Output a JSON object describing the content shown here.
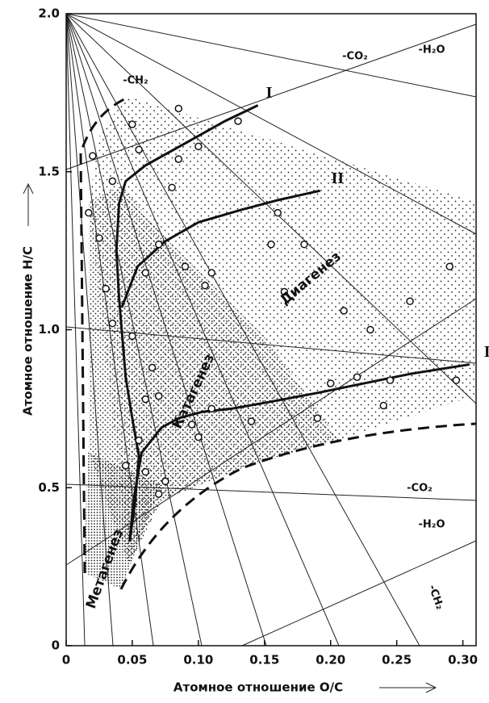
{
  "chart_data": {
    "type": "line",
    "x_label": "Атомное отношение O/C",
    "y_label": "Атомное отношение H/C",
    "xlim": [
      0,
      0.31
    ],
    "ylim": [
      0,
      2.0
    ],
    "xticks": [
      0,
      0.05,
      {
        "value": 0.1,
        "label": "0.10"
      },
      0.15,
      {
        "value": 0.2,
        "label": "0.20"
      },
      0.25,
      {
        "value": 0.3,
        "label": "0.30"
      }
    ],
    "yticks": [
      0,
      0.5,
      {
        "value": 1.0,
        "label": "1.0"
      },
      1.5,
      {
        "value": 2.0,
        "label": "2.0"
      }
    ],
    "series": [
      {
        "name": "I",
        "color": "#111111",
        "x": [
          0.145,
          0.12,
          0.09,
          0.06,
          0.045,
          0.04,
          0.038,
          0.04,
          0.042,
          0.045,
          0.05,
          0.055,
          0.052,
          0.048
        ],
        "values": [
          1.71,
          1.66,
          1.59,
          1.52,
          1.47,
          1.4,
          1.25,
          1.1,
          1.0,
          0.85,
          0.72,
          0.6,
          0.45,
          0.33
        ]
      },
      {
        "name": "II",
        "color": "#111111",
        "x": [
          0.192,
          0.16,
          0.133,
          0.1,
          0.075,
          0.054,
          0.042
        ],
        "values": [
          1.44,
          1.41,
          1.38,
          1.34,
          1.28,
          1.2,
          1.07
        ]
      },
      {
        "name": "III",
        "color": "#111111",
        "x": [
          0.305,
          0.26,
          0.225,
          0.19,
          0.152,
          0.125,
          0.103,
          0.085,
          0.072,
          0.057,
          0.051,
          0.048
        ],
        "values": [
          0.89,
          0.86,
          0.83,
          0.8,
          0.77,
          0.75,
          0.74,
          0.72,
          0.69,
          0.61,
          0.46,
          0.33
        ]
      }
    ],
    "points": {
      "x": [
        0.085,
        0.13,
        0.05,
        0.1,
        0.055,
        0.085,
        0.02,
        0.035,
        0.08,
        0.017,
        0.025,
        0.07,
        0.16,
        0.18,
        0.155,
        0.09,
        0.11,
        0.06,
        0.105,
        0.165,
        0.03,
        0.035,
        0.05,
        0.065,
        0.21,
        0.23,
        0.26,
        0.29,
        0.2,
        0.22,
        0.245,
        0.295,
        0.24,
        0.19,
        0.14,
        0.11,
        0.095,
        0.1,
        0.06,
        0.07,
        0.055,
        0.06,
        0.075,
        0.07,
        0.045
      ],
      "y": [
        1.7,
        1.66,
        1.65,
        1.58,
        1.57,
        1.54,
        1.55,
        1.47,
        1.45,
        1.37,
        1.29,
        1.27,
        1.37,
        1.27,
        1.27,
        1.2,
        1.18,
        1.18,
        1.14,
        1.12,
        1.13,
        1.02,
        0.98,
        0.88,
        1.06,
        1.0,
        1.09,
        1.2,
        0.83,
        0.85,
        0.84,
        0.84,
        0.76,
        0.72,
        0.71,
        0.75,
        0.7,
        0.66,
        0.78,
        0.79,
        0.65,
        0.55,
        0.52,
        0.48,
        0.57
      ]
    },
    "annotations": [
      "-CH₂",
      "-CO₂",
      "-H₂O",
      "-CO₂",
      "-H₂O",
      "-CH₂",
      "Диагенез",
      "Катагенез",
      "Метагенез"
    ]
  }
}
